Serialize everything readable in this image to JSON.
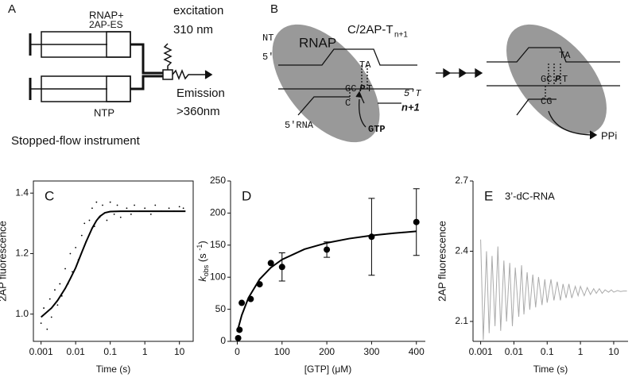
{
  "panel_a": {
    "label": "A",
    "rnap": "RNAP+",
    "es": "2AP-ES",
    "excitation": "excitation",
    "wavelength": "310 nm",
    "ntp": "NTP",
    "emission": "Emission",
    "emission_nm": ">360nm",
    "caption": "Stopped-flow instrument"
  },
  "panel_b": {
    "label": "B",
    "nt": "NT",
    "rnap": "RNAP",
    "template": "C/2AP-T",
    "template_sub": "n+1",
    "five_prime_nt": "5′",
    "ta": "TA",
    "gc": "GC",
    "p": "P",
    "t": "T",
    "five_prime_t": "5′T",
    "c": "C",
    "n_plus_1": "n+1",
    "five_prime_rna": "5′RNA",
    "gtp": "GTP",
    "ta_2": "TA",
    "gc_2": "GC",
    "p_2": "P",
    "t_2": "T",
    "cg_2": "CG",
    "ppi": "PPi"
  },
  "chart_data": [
    {
      "type": "scatter",
      "panel_label": "C",
      "x_label": "Time (s)",
      "y_label": "2AP fluorescence",
      "xscale": "log",
      "xlim": [
        0.0006,
        25
      ],
      "xticks": [
        0.001,
        0.01,
        0.1,
        1,
        10
      ],
      "ylim": [
        0.91,
        1.44
      ],
      "yticks": [
        {
          "value": 1,
          "label": "1.0"
        },
        1.2,
        1.4
      ],
      "series": [
        {
          "type": "scatter",
          "color": "#000000",
          "x": [
            0.001,
            0.0012,
            0.0015,
            0.0018,
            0.002,
            0.0025,
            0.003,
            0.0035,
            0.004,
            0.005,
            0.006,
            0.007,
            0.008,
            0.01,
            0.012,
            0.015,
            0.018,
            0.02,
            0.025,
            0.03,
            0.035,
            0.04,
            0.05,
            0.06,
            0.08,
            0.1,
            0.13,
            0.16,
            0.2,
            0.3,
            0.4,
            0.5,
            0.7,
            1,
            1.5,
            2,
            3,
            5,
            7,
            10,
            13
          ],
          "values": [
            0.97,
            1.02,
            0.95,
            1.05,
            0.99,
            1.08,
            1.03,
            1.1,
            1.06,
            1.15,
            1.1,
            1.2,
            1.14,
            1.22,
            1.18,
            1.26,
            1.3,
            1.24,
            1.31,
            1.35,
            1.29,
            1.37,
            1.32,
            1.36,
            1.31,
            1.37,
            1.33,
            1.36,
            1.32,
            1.35,
            1.33,
            1.36,
            1.34,
            1.35,
            1.33,
            1.36,
            1.34,
            1.35,
            1.34,
            1.355,
            1.35
          ]
        },
        {
          "type": "line",
          "color": "#000000",
          "x": [
            0.001,
            0.002,
            0.003,
            0.005,
            0.007,
            0.01,
            0.015,
            0.02,
            0.03,
            0.04,
            0.05,
            0.07,
            0.1,
            0.2,
            0.5,
            1,
            5,
            15
          ],
          "values": [
            0.99,
            1.02,
            1.045,
            1.085,
            1.117,
            1.153,
            1.204,
            1.239,
            1.284,
            1.309,
            1.323,
            1.335,
            1.339,
            1.34,
            1.34,
            1.34,
            1.34,
            1.34
          ]
        }
      ]
    },
    {
      "type": "scatter",
      "panel_label": "D",
      "x_label": "[GTP] (μM)",
      "y_label": [
        "k",
        "obs",
        " (s ",
        "-1",
        ")"
      ],
      "xlim": [
        -15,
        420
      ],
      "xticks": [
        0,
        100,
        200,
        300,
        400
      ],
      "ylim": [
        0,
        250
      ],
      "yticks": [
        0,
        50,
        100,
        150,
        200,
        250
      ],
      "series": [
        {
          "type": "scatter",
          "color": "#000000",
          "x": [
            2,
            5,
            10,
            30,
            50,
            75,
            100,
            200,
            300,
            400
          ],
          "values": [
            5,
            18,
            60,
            66,
            89,
            122,
            116,
            143,
            163,
            186
          ],
          "errors": [
            null,
            null,
            null,
            null,
            null,
            null,
            22,
            12,
            60,
            52
          ]
        },
        {
          "type": "line",
          "color": "#000000",
          "x": [
            0,
            10,
            25,
            50,
            75,
            100,
            150,
            200,
            250,
            300,
            350,
            400
          ],
          "values": [
            15,
            40.7,
            67.9,
            96.8,
            115,
            127.5,
            143.6,
            153.5,
            160.2,
            165,
            168.6,
            171.5
          ]
        }
      ]
    },
    {
      "type": "line",
      "panel_label": "E",
      "annotation": "3’-dC-RNA",
      "x_label": "Time (s)",
      "y_label": "2AP fluorescence",
      "xscale": "log",
      "xlim": [
        0.00059,
        27
      ],
      "xticks": [
        0.001,
        0.01,
        0.1,
        1,
        10
      ],
      "ylim": [
        2.015,
        2.7
      ],
      "yticks": [
        2.1,
        2.4,
        2.7
      ],
      "series": [
        {
          "type": "line",
          "color": "#aaaaaa",
          "x": [
            0.001,
            0.0012,
            0.0015,
            0.0018,
            0.0022,
            0.0027,
            0.0033,
            0.004,
            0.005,
            0.006,
            0.0075,
            0.009,
            0.011,
            0.014,
            0.017,
            0.02,
            0.025,
            0.03,
            0.037,
            0.045,
            0.055,
            0.07,
            0.085,
            0.1,
            0.13,
            0.16,
            0.2,
            0.25,
            0.3,
            0.37,
            0.45,
            0.55,
            0.7,
            0.85,
            1,
            1.3,
            1.6,
            2,
            2.5,
            3,
            3.7,
            4.5,
            5.5,
            7,
            8.5,
            10,
            13,
            16,
            20,
            25
          ],
          "values": [
            2.45,
            2.02,
            2.4,
            2.05,
            2.38,
            2.08,
            2.42,
            2.06,
            2.36,
            2.1,
            2.35,
            2.08,
            2.33,
            2.12,
            2.34,
            2.13,
            2.31,
            2.15,
            2.3,
            2.16,
            2.29,
            2.17,
            2.28,
            2.18,
            2.28,
            2.19,
            2.27,
            2.19,
            2.26,
            2.2,
            2.26,
            2.2,
            2.25,
            2.21,
            2.25,
            2.21,
            2.245,
            2.215,
            2.24,
            2.22,
            2.24,
            2.22,
            2.235,
            2.225,
            2.235,
            2.225,
            2.232,
            2.228,
            2.23,
            2.23
          ]
        }
      ]
    }
  ]
}
